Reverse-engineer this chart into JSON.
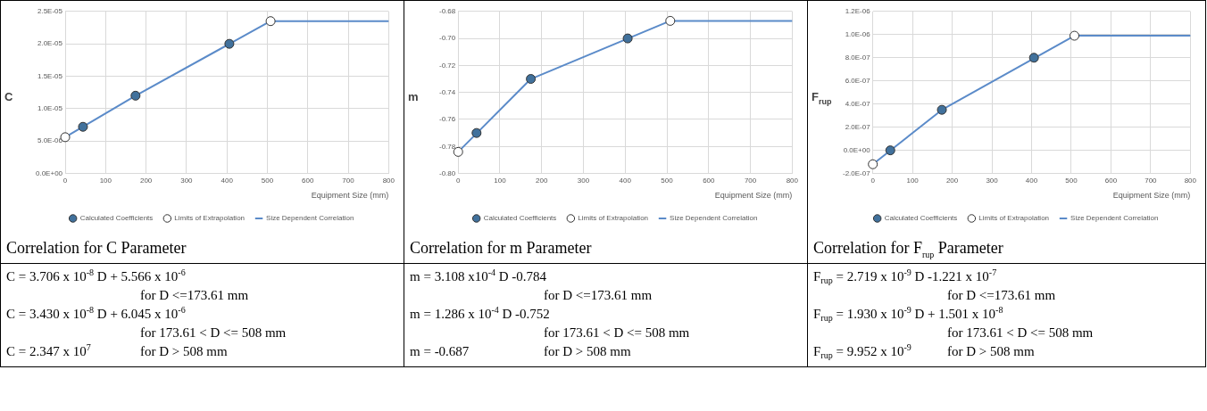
{
  "chart_data": [
    {
      "type": "scatter",
      "title": "Correlation for C Parameter",
      "xlabel": "Equipment Size (mm)",
      "ylabel": "C",
      "xlim": [
        0,
        800
      ],
      "xticks": [
        0,
        100,
        200,
        300,
        400,
        500,
        600,
        700,
        800
      ],
      "ylim": [
        0,
        2.5e-05
      ],
      "yticks": [
        {
          "value": 0,
          "label": "0.0E+00"
        },
        {
          "value": 5e-06,
          "label": "5.0E-06"
        },
        {
          "value": 1e-05,
          "label": "1.0E-05"
        },
        {
          "value": 1.5e-05,
          "label": "1.5E-05"
        },
        {
          "value": 2e-05,
          "label": "2.0E-05"
        },
        {
          "value": 2.5e-05,
          "label": "2.5E-05"
        }
      ],
      "grid": true,
      "legend": "bottom",
      "series": [
        {
          "name": "Calculated Coefficients",
          "type": "scatter",
          "marker": "circle",
          "color": "#41719c",
          "x": [
            44,
            174,
            406
          ],
          "values": [
            7.2e-06,
            1.2e-05,
            2e-05
          ]
        },
        {
          "name": "Limits of Extrapolation",
          "type": "scatter",
          "marker": "circle",
          "color": "#ffffff",
          "x": [
            0,
            508
          ],
          "values": [
            5.6e-06,
            2.35e-05
          ]
        },
        {
          "name": "Size Dependent Correlation",
          "type": "line",
          "color": "#5b8bc9",
          "x": [
            0,
            174,
            508,
            800
          ],
          "values": [
            5.6e-06,
            1.2e-05,
            2.35e-05,
            2.35e-05
          ]
        }
      ],
      "annotations": [
        "C = 3.706 x 10$^{-8}$ D + 5.566 x 10$^{-6}$",
        "for D <=173.61 mm",
        "C = 3.430 x 10$^{-8}$ D + 6.045 x 10$^{-6}$",
        "for 173.61 < D <= 508 mm",
        "C = 2.347 x 10$^{7}$",
        "for D > 508 mm"
      ]
    },
    {
      "type": "scatter",
      "title": "Correlation for m Parameter",
      "xlabel": "Equipment Size (mm)",
      "ylabel": "m",
      "xlim": [
        0,
        800
      ],
      "xticks": [
        0,
        100,
        200,
        300,
        400,
        500,
        600,
        700,
        800
      ],
      "ylim": [
        -0.8,
        -0.68
      ],
      "yticks": [
        {
          "value": -0.8,
          "label": "-0.80"
        },
        {
          "value": -0.78,
          "label": "-0.78"
        },
        {
          "value": -0.76,
          "label": "-0.76"
        },
        {
          "value": -0.74,
          "label": "-0.74"
        },
        {
          "value": -0.72,
          "label": "-0.72"
        },
        {
          "value": -0.7,
          "label": "-0.70"
        },
        {
          "value": -0.68,
          "label": "-0.68"
        }
      ],
      "grid": true,
      "legend": "bottom",
      "series": [
        {
          "name": "Calculated Coefficients",
          "type": "scatter",
          "marker": "circle",
          "color": "#41719c",
          "x": [
            44,
            174,
            406
          ],
          "values": [
            -0.77,
            -0.73,
            -0.7
          ]
        },
        {
          "name": "Limits of Extrapolation",
          "type": "scatter",
          "marker": "circle",
          "color": "#ffffff",
          "x": [
            0,
            508
          ],
          "values": [
            -0.784,
            -0.687
          ]
        },
        {
          "name": "Size Dependent Correlation",
          "type": "line",
          "color": "#5b8bc9",
          "x": [
            0,
            174,
            508,
            800
          ],
          "values": [
            -0.784,
            -0.73,
            -0.687,
            -0.687
          ]
        }
      ],
      "annotations": [
        "m = 3.108 x10$^{-4}$ D -0.784",
        "for D <=173.61 mm",
        "m = 1.286 x 10$^{-4}$ D -0.752",
        "for 173.61 < D <= 508 mm",
        "m = -0.687",
        "for D > 508 mm"
      ]
    },
    {
      "type": "scatter",
      "title": "Correlation for F$_{rup}$ Parameter",
      "xlabel": "Equipment Size (mm)",
      "ylabel": "F$_{rup}$",
      "xlim": [
        0,
        800
      ],
      "xticks": [
        0,
        100,
        200,
        300,
        400,
        500,
        600,
        700,
        800
      ],
      "ylim": [
        -2e-07,
        1.2e-06
      ],
      "yticks": [
        {
          "value": -2e-07,
          "label": "-2.0E-07"
        },
        {
          "value": 0,
          "label": "0.0E+00"
        },
        {
          "value": 2e-07,
          "label": "2.0E-07"
        },
        {
          "value": 4e-07,
          "label": "4.0E-07"
        },
        {
          "value": 6e-07,
          "label": "6.0E-07"
        },
        {
          "value": 8e-07,
          "label": "8.0E-07"
        },
        {
          "value": 1e-06,
          "label": "1.0E-06"
        },
        {
          "value": 1.2e-06,
          "label": "1.2E-06"
        }
      ],
      "grid": true,
      "legend": "bottom",
      "series": [
        {
          "name": "Calculated Coefficients",
          "type": "scatter",
          "marker": "circle",
          "color": "#41719c",
          "x": [
            44,
            174,
            406
          ],
          "values": [
            0,
            3.5e-07,
            8e-07
          ]
        },
        {
          "name": "Limits of Extrapolation",
          "type": "scatter",
          "marker": "circle",
          "color": "#ffffff",
          "x": [
            0,
            508
          ],
          "values": [
            -1.2e-07,
            9.9e-07
          ]
        },
        {
          "name": "Size Dependent Correlation",
          "type": "line",
          "color": "#5b8bc9",
          "x": [
            0,
            174,
            508,
            800
          ],
          "values": [
            -1.2e-07,
            3.5e-07,
            9.9e-07,
            9.9e-07
          ]
        }
      ],
      "annotations": [
        "F$_{rup}$ = 2.719 x 10$^{-9}$ D -1.221 x 10$^{-7}$",
        "for D <=173.61 mm",
        "F$_{rup}$ = 1.930 x 10$^{-9}$ D + 1.501 x 10$^{-8}$",
        "for 173.61 < D <= 508 mm",
        "F$_{rup}$ = 9.952 x 10$^{-9}$",
        "for D > 508 mm"
      ]
    }
  ]
}
